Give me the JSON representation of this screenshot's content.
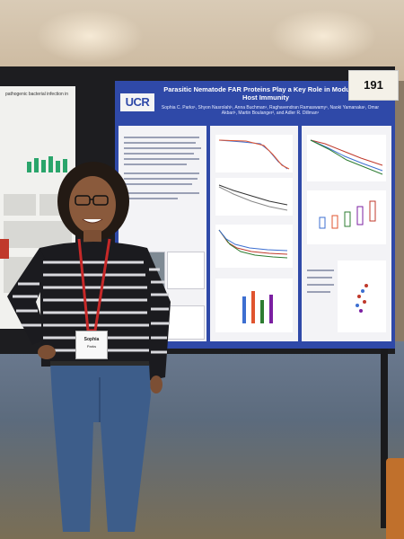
{
  "poster": {
    "title": "Parasitic Nematode FAR Proteins Play a Key Role in Modulating Host Immunity",
    "authors": "Sophia C. Parks¹, Shyon Nasrolahi¹, Anna Buchman¹, Raghavendran Ramaswamy¹, Naoki Yamanaka¹, Omar Akbari¹, Martin Boulanger², and Adler R. Dillman¹",
    "logo": "UCR",
    "left_title": "pathogenic bacterial infection in",
    "booth_number": "191"
  },
  "badge": {
    "name": "Sophia",
    "surname": "Parks"
  },
  "colors": {
    "poster_blue": "#2f49a8",
    "logo_gold": "#f2b21c",
    "sweater_black": "#1b1b1f",
    "sweater_stripe": "#d9d9de",
    "lanyard_red": "#c62828",
    "jeans_blue": "#3d5d8a"
  }
}
